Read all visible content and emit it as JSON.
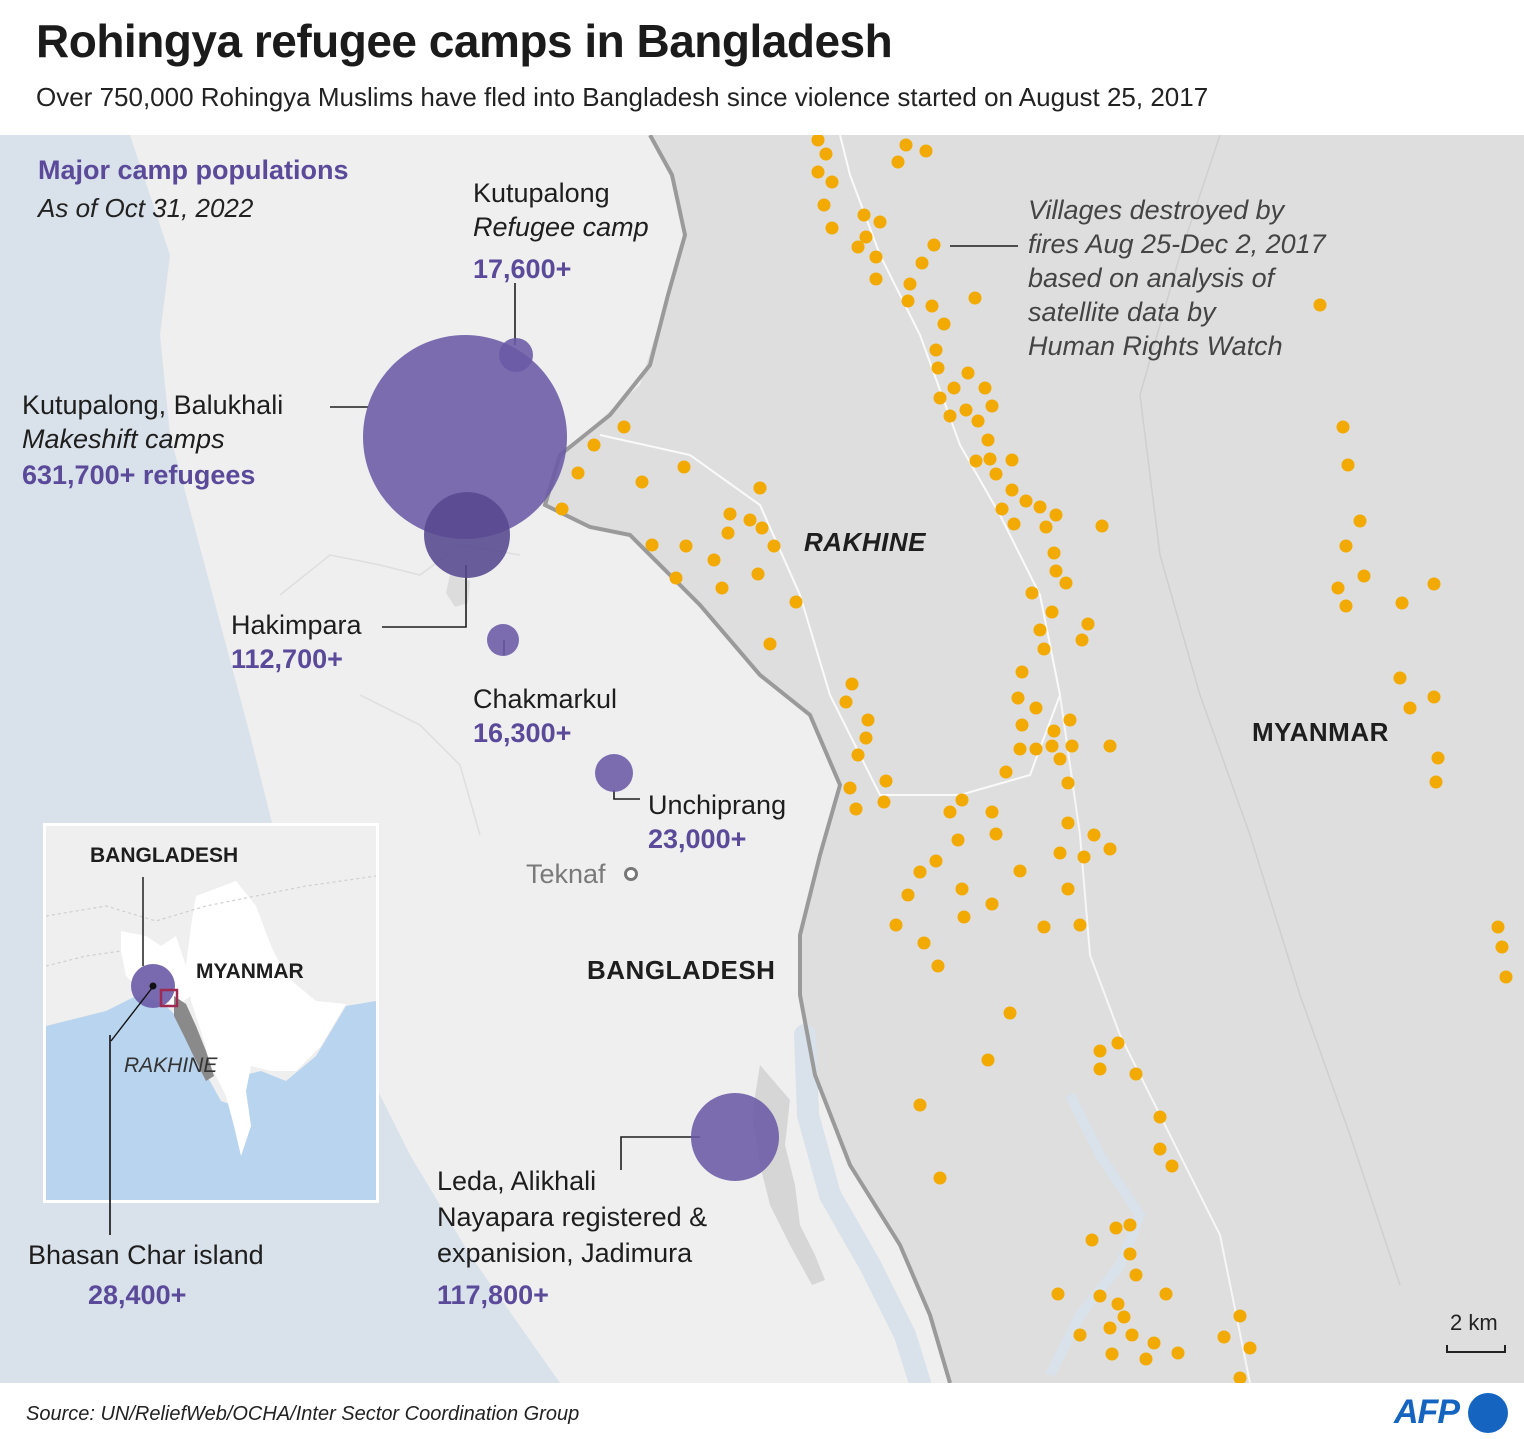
{
  "header": {
    "title": "Rohingya refugee camps in Bangladesh",
    "subtitle": "Over 750,000 Rohingya Muslims have fled into Bangladesh since violence started on August 25, 2017"
  },
  "legend": {
    "title": "Major camp populations",
    "date": "As of Oct 31, 2022"
  },
  "colors": {
    "sea": "#d9e1ea",
    "bangladesh_land": "#efefef",
    "myanmar_land": "#dedede",
    "camp_circle": "#6a5aa6",
    "village_dot": "#f2a900",
    "border_line": "#9a9a9a",
    "inset_sea": "#b9d4ee",
    "inset_highlight": "#9e2a52",
    "afp_blue": "#1565c0"
  },
  "camps": [
    {
      "name": "Kutupalong",
      "type": "Refugee camp",
      "population": "17,600+"
    },
    {
      "name": "Kutupalong, Balukhali",
      "type": "Makeshift camps",
      "population": "631,700+ refugees"
    },
    {
      "name": "Hakimpara",
      "population": "112,700+"
    },
    {
      "name": "Chakmarkul",
      "population": "16,300+"
    },
    {
      "name": "Unchiprang",
      "population": "23,000+"
    },
    {
      "name_lines": [
        "Leda, Alikhali",
        "Nayapara registered &",
        "expanision, Jadimura"
      ],
      "population": "117,800+"
    },
    {
      "name": "Bhasan Char island",
      "population": "28,400+"
    }
  ],
  "villages_note": [
    "Villages destroyed by",
    "fires Aug 25-Dec 2, 2017",
    "based on analysis of",
    "satellite data by",
    "Human Rights Watch"
  ],
  "labels": {
    "rakhine": "RAKHINE",
    "myanmar": "MYANMAR",
    "bangladesh": "BANGLADESH",
    "teknaf": "Teknaf"
  },
  "inset": {
    "bangladesh": "BANGLADESH",
    "myanmar": "MYANMAR",
    "rakhine": "RAKHINE"
  },
  "scale": {
    "label": "2 km"
  },
  "footer": {
    "source": "Source: UN/ReliefWeb/OCHA/Inter Sector Coordination Group",
    "logo": "AFP"
  }
}
